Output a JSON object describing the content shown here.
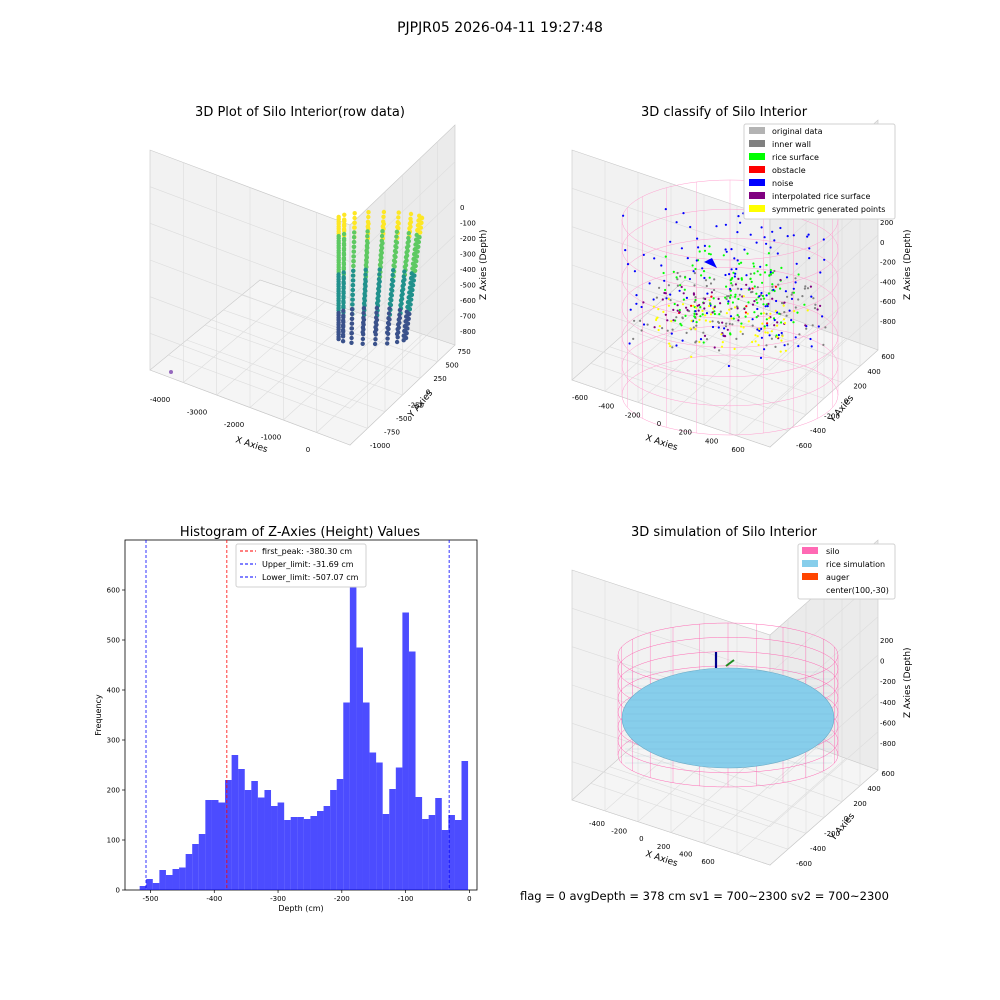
{
  "figure": {
    "suptitle": "PJPJR05 2026-04-11 19:27:48",
    "status_line": "flag = 0     avgDepth = 378 cm  sv1 = 700~2300  sv2 = 700~2300"
  },
  "panels": {
    "raw": {
      "title": "3D Plot of Silo Interior(row data)",
      "xlabel": "X Axies",
      "ylabel": "Y Axies",
      "zlabel": "Z Axies (Depth)",
      "x_ticks": [
        "-4000",
        "-3000",
        "-2000",
        "-1000",
        "0"
      ],
      "y_ticks": [
        "750",
        "500",
        "250",
        "0",
        "-250",
        "-500",
        "-750",
        "-1000"
      ],
      "z_ticks": [
        "0",
        "-100",
        "-200",
        "-300",
        "-400",
        "-500",
        "-600",
        "-700",
        "-800"
      ],
      "colormap": [
        "#fde725",
        "#5ec962",
        "#21918c",
        "#3b528b"
      ],
      "outlier_color": "#9467bd"
    },
    "classify": {
      "title": "3D classify of Silo Interior",
      "xlabel": "X Axies",
      "ylabel": "Y Axies",
      "zlabel": "Z Axies (Depth)",
      "x_ticks": [
        "-600",
        "-400",
        "-200",
        "0",
        "200",
        "400",
        "600"
      ],
      "y_ticks": [
        "600",
        "400",
        "200",
        "0",
        "-200",
        "-400",
        "-600"
      ],
      "z_ticks": [
        "200",
        "0",
        "-200",
        "-400",
        "-600",
        "-800"
      ],
      "legend": [
        {
          "label": "original data",
          "color": "#b3b3b3"
        },
        {
          "label": "inner wall",
          "color": "#808080"
        },
        {
          "label": "rice surface",
          "color": "#00ff00"
        },
        {
          "label": "obstacle",
          "color": "#ff0000"
        },
        {
          "label": "noise",
          "color": "#0000ff"
        },
        {
          "label": "interpolated rice surface",
          "color": "#800080"
        },
        {
          "label": "symmetric generated points",
          "color": "#ffff00"
        }
      ],
      "wire_color": "#ff9fcf"
    },
    "simulation": {
      "title": "3D simulation of Silo Interior",
      "xlabel": "X Axies",
      "ylabel": "Y Axies",
      "zlabel": "Z Axies (Depth)",
      "x_ticks": [
        "-400",
        "-200",
        "0",
        "200",
        "400",
        "600"
      ],
      "y_ticks": [
        "600",
        "400",
        "200",
        "0",
        "-200",
        "-400",
        "-600"
      ],
      "z_ticks": [
        "200",
        "0",
        "-200",
        "-400",
        "-600",
        "-800"
      ],
      "legend": [
        {
          "label": "silo",
          "color": "#ff69b4"
        },
        {
          "label": "rice simulation",
          "color": "#87ceeb"
        },
        {
          "label": "auger",
          "color": "#ff4500"
        },
        {
          "label": "center(100,-30)",
          "color": ""
        }
      ],
      "silo_color": "#ff69b4",
      "rice_color": "#87ceeb"
    }
  },
  "chart_data": {
    "type": "bar",
    "title": "Histogram of Z-Axies (Height) Values",
    "xlabel": "Depth (cm)",
    "ylabel": "Frequency",
    "xlim": [
      -540,
      12
    ],
    "ylim": [
      0,
      700
    ],
    "x_ticks": [
      -500,
      -400,
      -300,
      -200,
      -100,
      0
    ],
    "y_ticks": [
      0,
      100,
      200,
      300,
      400,
      500,
      600
    ],
    "bin_width": 10.3,
    "bin_start": -517,
    "values": [
      8,
      22,
      14,
      40,
      30,
      42,
      45,
      72,
      92,
      112,
      180,
      180,
      175,
      220,
      270,
      242,
      200,
      218,
      185,
      200,
      168,
      175,
      140,
      146,
      146,
      142,
      148,
      158,
      168,
      200,
      222,
      375,
      660,
      485,
      375,
      275,
      255,
      152,
      202,
      245,
      555,
      477,
      186,
      142,
      150,
      184,
      120,
      150,
      140,
      258
    ],
    "bar_color": "#0000ff",
    "vlines": [
      {
        "label": "first_peak: -380.30 cm",
        "x": -380.3,
        "color": "#ff0000"
      },
      {
        "label": "Upper_limit: -31.69 cm",
        "x": -31.69,
        "color": "#0000ff"
      },
      {
        "label": "Lower_limit: -507.07 cm",
        "x": -507.07,
        "color": "#0000ff"
      }
    ]
  }
}
